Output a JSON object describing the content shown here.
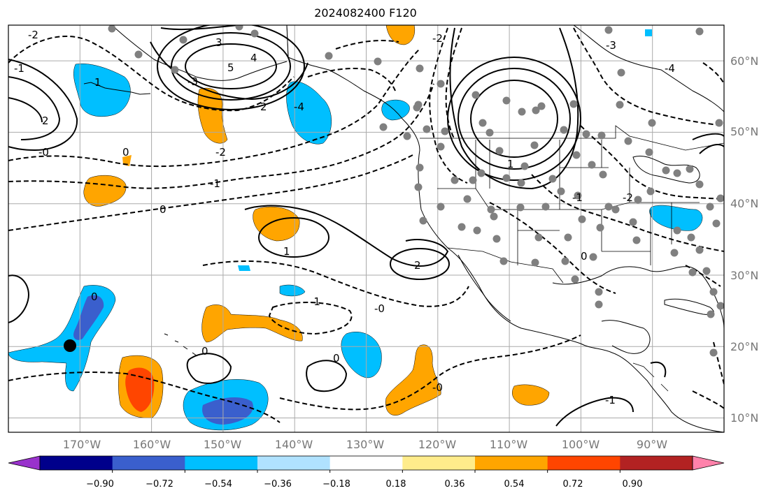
{
  "title": "2024082400 F120",
  "map": {
    "lon_range": [
      -180,
      -80
    ],
    "lat_range": [
      8,
      65
    ],
    "lon_ticks": [
      "170°W",
      "160°W",
      "150°W",
      "140°W",
      "130°W",
      "120°W",
      "110°W",
      "100°W",
      "90°W"
    ],
    "lat_ticks": [
      "60°N",
      "50°N",
      "40°N",
      "30°N",
      "20°N",
      "10°N"
    ],
    "grid": true,
    "station_marker_color": "#808080",
    "center_marker_color": "#000000"
  },
  "contour_labels": [
    "-2",
    "-1",
    "-0",
    "0",
    "1",
    "2",
    "3",
    "4",
    "5",
    "-3",
    "-4",
    "2",
    "-2",
    "-1",
    "0",
    "1",
    "2",
    "-2",
    "-3",
    "0",
    "-1",
    "-0",
    "0",
    "0",
    "-4",
    "-2",
    "-1",
    "0",
    "-0",
    "-1",
    "1"
  ],
  "colorbar": {
    "ticks": [
      "−0.90",
      "−0.72",
      "−0.54",
      "−0.36",
      "−0.18",
      "0.18",
      "0.36",
      "0.54",
      "0.72",
      "0.90"
    ],
    "colors": [
      "#9932cc",
      "#00008b",
      "#3a5fcd",
      "#00bfff",
      "#b0e2ff",
      "#ffffff",
      "#ffec8b",
      "#ffa500",
      "#ff4500",
      "#b22222",
      "#ff82ab"
    ]
  }
}
